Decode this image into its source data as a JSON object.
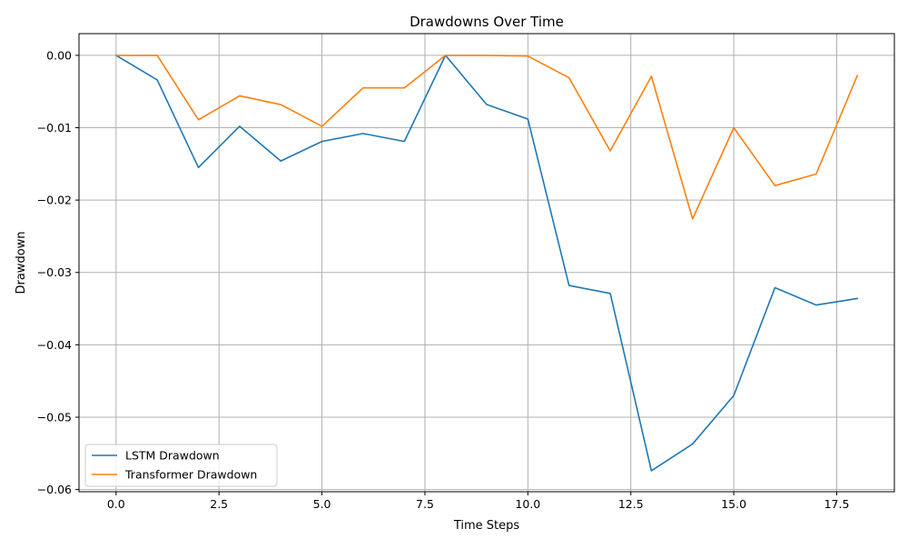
{
  "chart_data": {
    "type": "line",
    "title": "Drawdowns Over Time",
    "xlabel": "Time Steps",
    "ylabel": "Drawdown",
    "xlim": [
      -0.9,
      18.9
    ],
    "ylim": [
      -0.0603,
      0.003
    ],
    "xticks": [
      0.0,
      2.5,
      5.0,
      7.5,
      10.0,
      12.5,
      15.0,
      17.5
    ],
    "xtick_labels": [
      "0.0",
      "2.5",
      "5.0",
      "7.5",
      "10.0",
      "12.5",
      "15.0",
      "17.5"
    ],
    "yticks": [
      0.0,
      -0.01,
      -0.02,
      -0.03,
      -0.04,
      -0.05,
      -0.06
    ],
    "ytick_labels": [
      "0.00",
      "−0.01",
      "−0.02",
      "−0.03",
      "−0.04",
      "−0.05",
      "−0.06"
    ],
    "grid": true,
    "legend_position": "lower-left",
    "x": [
      0,
      1,
      2,
      3,
      4,
      5,
      6,
      7,
      8,
      9,
      10,
      11,
      12,
      13,
      14,
      15,
      16,
      17,
      18
    ],
    "series": [
      {
        "name": "LSTM Drawdown",
        "color": "#1f77b4",
        "values": [
          0.0,
          -0.0034,
          -0.0155,
          -0.0098,
          -0.0146,
          -0.0119,
          -0.0108,
          -0.0119,
          0.0,
          -0.0068,
          -0.0088,
          -0.0318,
          -0.0329,
          -0.0574,
          -0.0537,
          -0.047,
          -0.0321,
          -0.0345,
          -0.0336
        ]
      },
      {
        "name": "Transformer Drawdown",
        "color": "#ff7f0e",
        "values": [
          0.0,
          0.0,
          -0.0089,
          -0.0056,
          -0.0068,
          -0.0098,
          -0.0045,
          -0.0045,
          0.0,
          0.0,
          -0.0001,
          -0.0031,
          -0.0132,
          -0.0029,
          -0.0226,
          -0.01,
          -0.018,
          -0.0164,
          -0.0028
        ]
      }
    ]
  }
}
